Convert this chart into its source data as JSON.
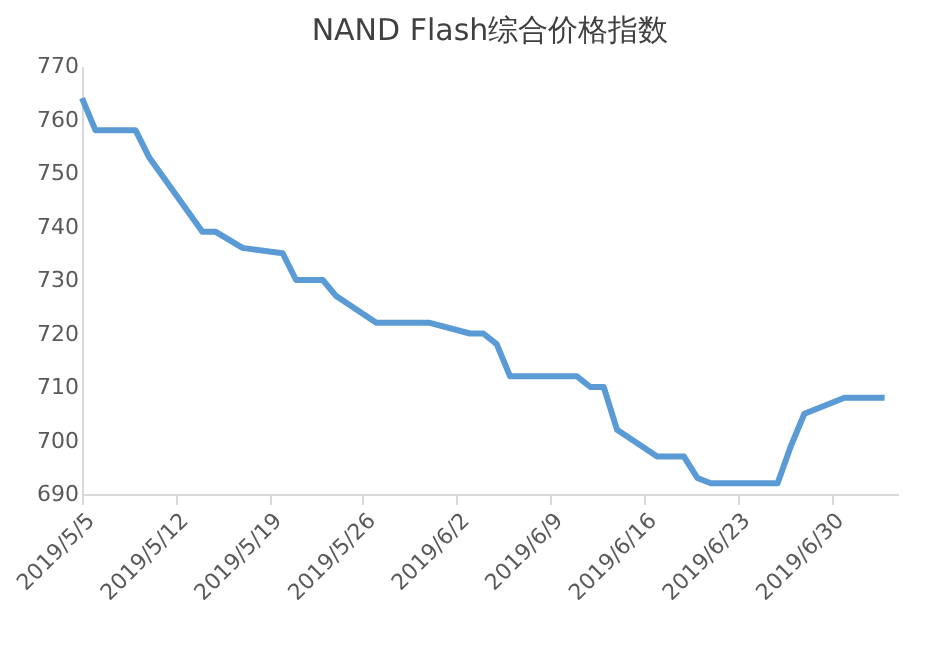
{
  "chart_data": {
    "type": "line",
    "title": "NAND Flash综合价格指数",
    "x": [
      "2019-05-05",
      "2019-05-06",
      "2019-05-09",
      "2019-05-10",
      "2019-05-14",
      "2019-05-15",
      "2019-05-17",
      "2019-05-20",
      "2019-05-21",
      "2019-05-23",
      "2019-05-24",
      "2019-05-27",
      "2019-05-31",
      "2019-06-03",
      "2019-06-04",
      "2019-06-05",
      "2019-06-06",
      "2019-06-11",
      "2019-06-12",
      "2019-06-13",
      "2019-06-14",
      "2019-06-17",
      "2019-06-19",
      "2019-06-20",
      "2019-06-21",
      "2019-06-26",
      "2019-06-27",
      "2019-06-28",
      "2019-07-01",
      "2019-07-04"
    ],
    "series": [
      {
        "color": "#5b9bd5",
        "values": [
          764,
          758,
          758,
          753,
          739,
          739,
          736,
          735,
          730,
          730,
          727,
          722,
          722,
          720,
          720,
          718,
          712,
          712,
          710,
          710,
          702,
          697,
          697,
          693,
          692,
          692,
          699,
          705,
          708,
          708
        ]
      }
    ],
    "xlim": [
      "2019-05-05",
      "2019-07-05"
    ],
    "xticks": [
      {
        "value": "2019-05-05",
        "label": "2019/5/5"
      },
      {
        "value": "2019-05-12",
        "label": "2019/5/12"
      },
      {
        "value": "2019-05-19",
        "label": "2019/5/19"
      },
      {
        "value": "2019-05-26",
        "label": "2019/5/26"
      },
      {
        "value": "2019-06-02",
        "label": "2019/6/2"
      },
      {
        "value": "2019-06-09",
        "label": "2019/6/9"
      },
      {
        "value": "2019-06-16",
        "label": "2019/6/16"
      },
      {
        "value": "2019-06-23",
        "label": "2019/6/23"
      },
      {
        "value": "2019-06-30",
        "label": "2019/6/30"
      }
    ],
    "ylim": [
      690,
      770
    ],
    "yticks": [
      690,
      700,
      710,
      720,
      730,
      740,
      750,
      760,
      770
    ],
    "grid": false,
    "marker": "none",
    "line_style": "solid"
  }
}
